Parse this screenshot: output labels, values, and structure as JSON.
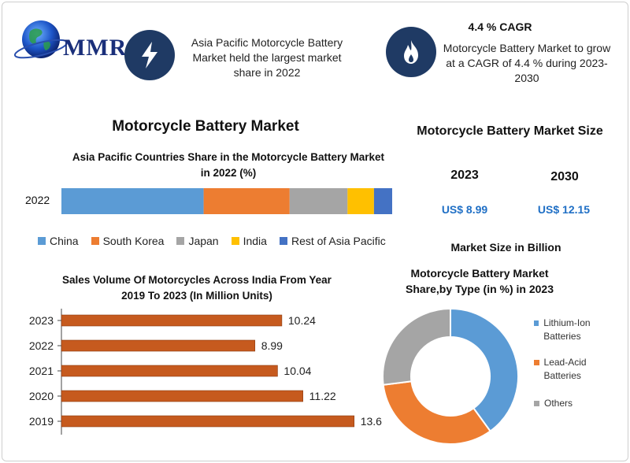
{
  "logo": {
    "text": "MMR"
  },
  "highlights": [
    {
      "icon": "lightning-bolt-icon",
      "text": "Asia Pacific Motorcycle Battery Market held the largest market share in 2022"
    },
    {
      "icon": "flame-icon",
      "title": "4.4 % CAGR",
      "text": "Motorcycle Battery Market to grow at a CAGR of 4.4 % during 2023-2030"
    }
  ],
  "main_title": "Motorcycle Battery Market",
  "market_size": {
    "title": "Motorcycle Battery Market Size",
    "years": [
      "2023",
      "2030"
    ],
    "values": [
      "US$ 8.99",
      "US$ 12.15"
    ],
    "note": "Market Size in Billion"
  },
  "colors": {
    "accent_dark": "#1f3a64",
    "value_blue": "#1f6fc5",
    "bar_orange": "#c65a1e"
  },
  "chart_data": [
    {
      "type": "bar",
      "orientation": "horizontal",
      "stacked": true,
      "title": "Asia Pacific Countries Share in the Motorcycle Battery Market in 2022 (%)",
      "categories": [
        "2022"
      ],
      "series": [
        {
          "name": "China",
          "values": [
            43
          ],
          "color": "#5b9bd5"
        },
        {
          "name": "South Korea",
          "values": [
            26
          ],
          "color": "#ed7d31"
        },
        {
          "name": "Japan",
          "values": [
            17.5
          ],
          "color": "#a5a5a5"
        },
        {
          "name": "India",
          "values": [
            8
          ],
          "color": "#ffc000"
        },
        {
          "name": "Rest of Asia Pacific",
          "values": [
            5.5
          ],
          "color": "#4472c4"
        }
      ],
      "legend": "bottom"
    },
    {
      "type": "bar",
      "orientation": "horizontal",
      "title": "Sales Volume Of Motorcycles Across India From Year 2019 To 2023 (In Million Units)",
      "categories": [
        "2023",
        "2022",
        "2021",
        "2020",
        "2019"
      ],
      "values": [
        10.24,
        8.99,
        10.04,
        11.22,
        13.6
      ],
      "color": "#c65a1e",
      "xlim": [
        0,
        15
      ]
    },
    {
      "type": "pie",
      "donut": true,
      "title": "Motorcycle Battery Market Share,by Type (in %) in 2023",
      "labels": [
        "Lithium-Ion Batteries",
        "Lead-Acid Batteries",
        "Others"
      ],
      "values": [
        40,
        33,
        27
      ],
      "colors": [
        "#5b9bd5",
        "#ed7d31",
        "#a5a5a5"
      ],
      "legend": "right"
    }
  ]
}
